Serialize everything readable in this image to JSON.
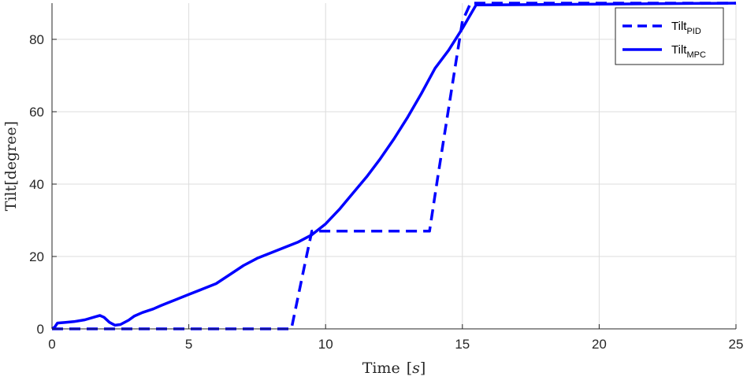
{
  "chart_data": {
    "type": "line",
    "xlabel": "Time",
    "xlabel_unit": "s",
    "ylabel": "Tilt[degree]",
    "xlim": [
      0,
      25
    ],
    "ylim": [
      0,
      90
    ],
    "xticks": [
      0,
      5,
      10,
      15,
      20,
      25
    ],
    "yticks": [
      0,
      20,
      40,
      60,
      80
    ],
    "grid": true,
    "legend_position": "top-right",
    "colors": {
      "series": "#0000ff",
      "grid": "#dcdcdc",
      "axis": "#262626"
    },
    "series": [
      {
        "name": "Tilt",
        "name_sub": "PID",
        "style": "dashed",
        "x": [
          0,
          8.75,
          9.3,
          9.5,
          13.8,
          14.1,
          15.0,
          15.3,
          25
        ],
        "y": [
          0,
          0,
          20,
          27,
          27,
          42,
          85,
          90,
          90
        ]
      },
      {
        "name": "Tilt",
        "name_sub": "MPC",
        "style": "solid",
        "x": [
          0,
          0.1,
          0.2,
          0.5,
          0.8,
          1.2,
          1.6,
          1.75,
          1.9,
          2.1,
          2.3,
          2.5,
          2.8,
          3.0,
          3.3,
          3.7,
          4.0,
          4.5,
          5.0,
          5.5,
          6.0,
          6.5,
          7.0,
          7.5,
          8.0,
          8.5,
          9.0,
          9.5,
          10.0,
          10.5,
          11.0,
          11.5,
          12.0,
          12.5,
          13.0,
          13.5,
          14.0,
          14.5,
          15.0,
          15.5,
          25
        ],
        "y": [
          0,
          0.5,
          1.6,
          1.8,
          2.0,
          2.5,
          3.4,
          3.7,
          3.2,
          1.8,
          1.0,
          1.2,
          2.4,
          3.5,
          4.5,
          5.5,
          6.5,
          8.0,
          9.5,
          11.0,
          12.5,
          15.0,
          17.5,
          19.5,
          21.0,
          22.5,
          24.0,
          26.0,
          29.0,
          33.0,
          37.5,
          42.0,
          47.0,
          52.5,
          58.5,
          65.0,
          72.0,
          77.0,
          83.0,
          89.5,
          90
        ]
      }
    ]
  }
}
